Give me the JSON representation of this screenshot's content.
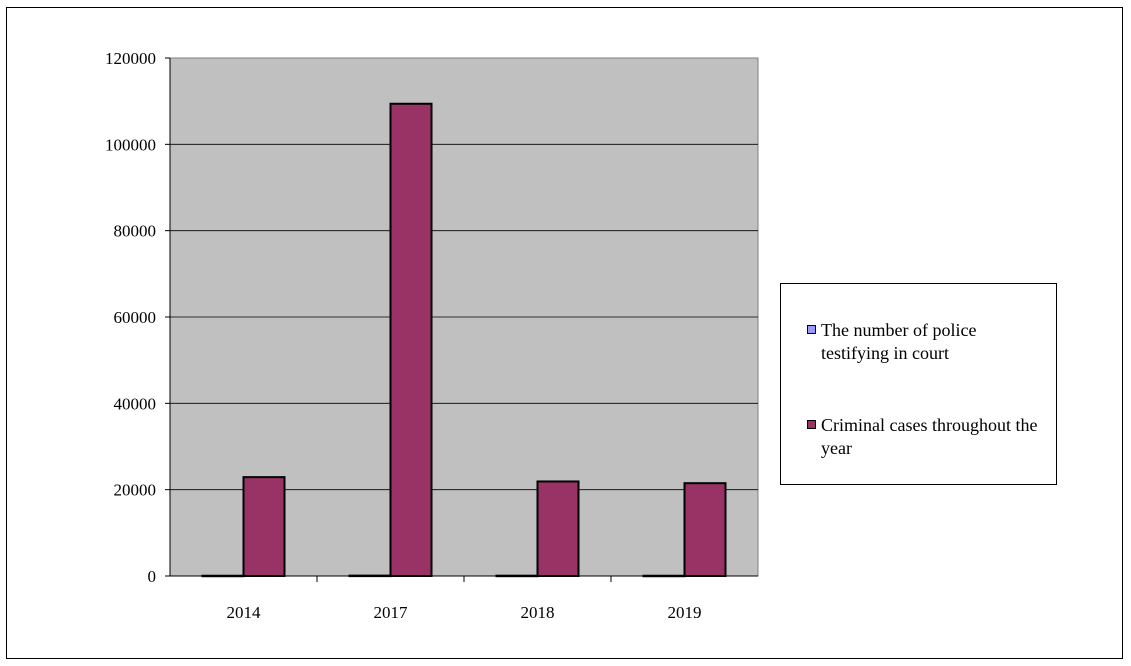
{
  "chart_data": {
    "type": "bar",
    "title": "",
    "xlabel": "",
    "ylabel": "",
    "categories": [
      "2014",
      "2017",
      "2018",
      "2019"
    ],
    "series": [
      {
        "name": "The number of police testifying in court",
        "values": [
          60,
          90,
          70,
          60
        ],
        "color": "#9999ff"
      },
      {
        "name": "Criminal cases throughout the year",
        "values": [
          22900,
          109400,
          21900,
          21500
        ],
        "color": "#993366"
      }
    ],
    "ylim": [
      0,
      120000
    ],
    "yticks": [
      "0",
      "20000",
      "40000",
      "60000",
      "80000",
      "100000",
      "120000"
    ],
    "grid": true,
    "plot_background": "#c0c0c0",
    "legend_position": "right"
  }
}
